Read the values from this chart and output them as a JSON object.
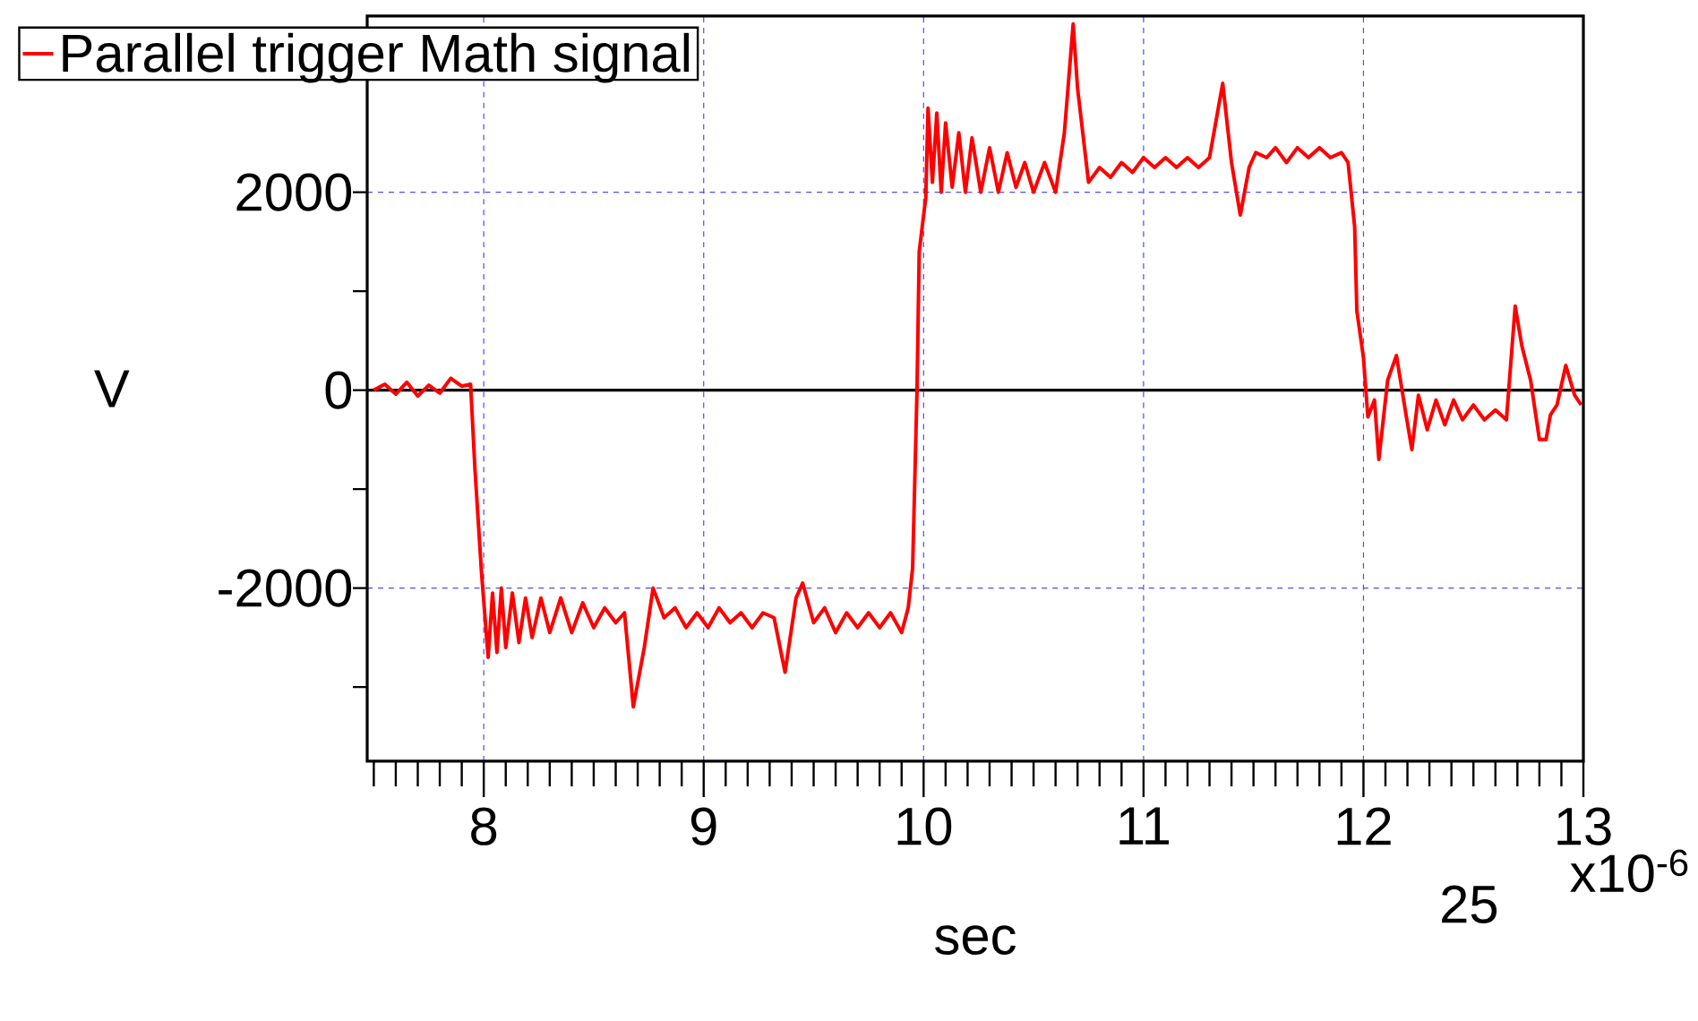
{
  "chart_data": {
    "type": "line",
    "xlabel": "sec",
    "ylabel": "V",
    "xlim": [
      7.47,
      13.0
    ],
    "ylim": [
      -3750,
      3780
    ],
    "xticks": [
      {
        "value": 7.5,
        "label": null
      },
      {
        "value": 7.6,
        "label": null
      },
      {
        "value": 7.7,
        "label": null
      },
      {
        "value": 7.8,
        "label": null
      },
      {
        "value": 7.9,
        "label": null
      },
      8,
      {
        "value": 8.1,
        "label": null
      },
      {
        "value": 8.2,
        "label": null
      },
      {
        "value": 8.3,
        "label": null
      },
      {
        "value": 8.4,
        "label": null
      },
      {
        "value": 8.5,
        "label": null
      },
      {
        "value": 8.6,
        "label": null
      },
      {
        "value": 8.7,
        "label": null
      },
      {
        "value": 8.8,
        "label": null
      },
      {
        "value": 8.9,
        "label": null
      },
      9,
      {
        "value": 9.1,
        "label": null
      },
      {
        "value": 9.2,
        "label": null
      },
      {
        "value": 9.3,
        "label": null
      },
      {
        "value": 9.4,
        "label": null
      },
      {
        "value": 9.5,
        "label": null
      },
      {
        "value": 9.6,
        "label": null
      },
      {
        "value": 9.7,
        "label": null
      },
      {
        "value": 9.8,
        "label": null
      },
      {
        "value": 9.9,
        "label": null
      },
      10,
      {
        "value": 10.1,
        "label": null
      },
      {
        "value": 10.2,
        "label": null
      },
      {
        "value": 10.3,
        "label": null
      },
      {
        "value": 10.4,
        "label": null
      },
      {
        "value": 10.5,
        "label": null
      },
      {
        "value": 10.6,
        "label": null
      },
      {
        "value": 10.7,
        "label": null
      },
      {
        "value": 10.8,
        "label": null
      },
      {
        "value": 10.9,
        "label": null
      },
      11,
      {
        "value": 11.1,
        "label": null
      },
      {
        "value": 11.2,
        "label": null
      },
      {
        "value": 11.3,
        "label": null
      },
      {
        "value": 11.4,
        "label": null
      },
      {
        "value": 11.5,
        "label": null
      },
      {
        "value": 11.6,
        "label": null
      },
      {
        "value": 11.7,
        "label": null
      },
      {
        "value": 11.8,
        "label": null
      },
      {
        "value": 11.9,
        "label": null
      },
      12,
      {
        "value": 12.1,
        "label": null
      },
      {
        "value": 12.2,
        "label": null
      },
      {
        "value": 12.3,
        "label": null
      },
      {
        "value": 12.4,
        "label": null
      },
      {
        "value": 12.5,
        "label": null
      },
      {
        "value": 12.6,
        "label": null
      },
      {
        "value": 12.7,
        "label": null
      },
      {
        "value": 12.8,
        "label": null
      },
      {
        "value": 12.9,
        "label": null
      },
      13
    ],
    "yticks": [
      {
        "value": -3000,
        "label": null
      },
      -2000,
      {
        "value": -1000,
        "label": null
      },
      0,
      {
        "value": 1000,
        "label": null
      },
      2000
    ],
    "grid": true,
    "legend": "top left",
    "marker": "none",
    "line_style": "solid",
    "ref_lines": [
      {
        "axis": "y",
        "value": 0,
        "color": "#000000",
        "line_style": "solid"
      }
    ],
    "annotations": [
      "x10$^{-6}$",
      "25"
    ],
    "series": [
      {
        "name": "Parallel trigger Math signal",
        "color": "#ff0000",
        "x": [
          7.5,
          7.55,
          7.6,
          7.65,
          7.7,
          7.75,
          7.8,
          7.85,
          7.9,
          7.94,
          7.96,
          7.99,
          8.02,
          8.04,
          8.06,
          8.08,
          8.1,
          8.13,
          8.16,
          8.19,
          8.22,
          8.26,
          8.3,
          8.35,
          8.4,
          8.45,
          8.5,
          8.55,
          8.6,
          8.64,
          8.68,
          8.73,
          8.77,
          8.82,
          8.87,
          8.92,
          8.97,
          9.02,
          9.07,
          9.12,
          9.17,
          9.22,
          9.27,
          9.32,
          9.37,
          9.42,
          9.45,
          9.5,
          9.55,
          9.6,
          9.65,
          9.7,
          9.75,
          9.8,
          9.85,
          9.9,
          9.93,
          9.95,
          9.97,
          9.98,
          10.01,
          10.02,
          10.04,
          10.06,
          10.08,
          10.1,
          10.13,
          10.16,
          10.19,
          10.22,
          10.26,
          10.3,
          10.34,
          10.38,
          10.42,
          10.46,
          10.5,
          10.55,
          10.6,
          10.64,
          10.68,
          10.7,
          10.75,
          10.8,
          10.85,
          10.9,
          10.95,
          11.0,
          11.05,
          11.1,
          11.15,
          11.2,
          11.25,
          11.3,
          11.36,
          11.4,
          11.44,
          11.48,
          11.51,
          11.56,
          11.6,
          11.65,
          11.7,
          11.75,
          11.8,
          11.85,
          11.9,
          11.93,
          11.96,
          11.97,
          12.0,
          12.02,
          12.05,
          12.07,
          12.11,
          12.15,
          12.19,
          12.22,
          12.25,
          12.29,
          12.33,
          12.37,
          12.41,
          12.45,
          12.5,
          12.55,
          12.6,
          12.65,
          12.69,
          12.72,
          12.76,
          12.8,
          12.83,
          12.85,
          12.88,
          12.92,
          12.96,
          12.99
        ],
        "values": [
          0,
          60,
          -40,
          80,
          -60,
          50,
          -30,
          120,
          40,
          60,
          -800,
          -1850,
          -2700,
          -2050,
          -2650,
          -2000,
          -2600,
          -2050,
          -2550,
          -2100,
          -2500,
          -2100,
          -2450,
          -2100,
          -2450,
          -2150,
          -2400,
          -2200,
          -2350,
          -2250,
          -3200,
          -2600,
          -2000,
          -2300,
          -2200,
          -2400,
          -2250,
          -2400,
          -2200,
          -2350,
          -2250,
          -2400,
          -2250,
          -2300,
          -2850,
          -2100,
          -1950,
          -2350,
          -2200,
          -2450,
          -2250,
          -2400,
          -2250,
          -2400,
          -2250,
          -2450,
          -2200,
          -1800,
          0,
          1400,
          1950,
          2850,
          2100,
          2800,
          2000,
          2700,
          2050,
          2600,
          2000,
          2550,
          2000,
          2450,
          2000,
          2400,
          2050,
          2300,
          2000,
          2300,
          2000,
          2600,
          3700,
          3050,
          2100,
          2250,
          2150,
          2300,
          2200,
          2350,
          2250,
          2350,
          2250,
          2350,
          2250,
          2350,
          3100,
          2300,
          1770,
          2250,
          2400,
          2350,
          2450,
          2300,
          2450,
          2350,
          2450,
          2350,
          2400,
          2300,
          1650,
          800,
          330,
          -270,
          -100,
          -700,
          100,
          350,
          -200,
          -600,
          -50,
          -400,
          -100,
          -350,
          -100,
          -300,
          -150,
          -300,
          -200,
          -300,
          850,
          450,
          100,
          -500,
          -500,
          -250,
          -150,
          250,
          -50,
          -150
        ]
      }
    ]
  }
}
